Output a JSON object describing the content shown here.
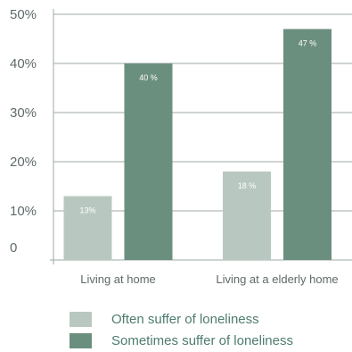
{
  "chart_data": {
    "type": "bar",
    "categories": [
      "Living at home",
      "Living at a elderly home"
    ],
    "ylim": [
      0,
      50
    ],
    "y_ticks": [
      "0",
      "10%",
      "20%",
      "30%",
      "40%",
      "50%"
    ],
    "series": [
      {
        "name": "Often suffer of loneliness",
        "values": [
          13,
          18
        ],
        "data_labels": [
          "13%",
          "18 %"
        ],
        "color": "#b8c8c0"
      },
      {
        "name": "Sometimes suffer of loneliness",
        "values": [
          40,
          47
        ],
        "data_labels": [
          "40 %",
          "47 %"
        ],
        "color": "#6b8f7f"
      }
    ],
    "grid": true,
    "legend_position": "bottom"
  }
}
